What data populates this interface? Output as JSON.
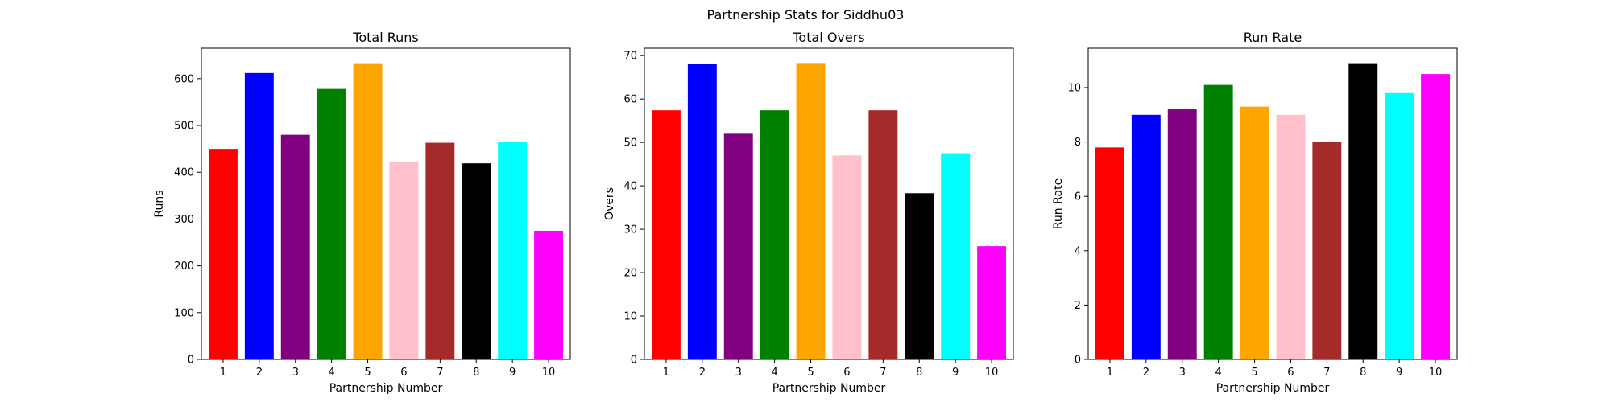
{
  "figure": {
    "suptitle": "Partnership Stats for Siddhu03"
  },
  "bar_colors": [
    "#ff0000",
    "#0000ff",
    "#800080",
    "#008000",
    "#ffa500",
    "#ffc0cb",
    "#a52a2a",
    "#000000",
    "#00ffff",
    "#ff00ff"
  ],
  "chart_data": [
    {
      "type": "bar",
      "title": "Total Runs",
      "xlabel": "Partnership Number",
      "ylabel": "Runs",
      "categories": [
        "1",
        "2",
        "3",
        "4",
        "5",
        "6",
        "7",
        "8",
        "9",
        "10"
      ],
      "values": [
        450,
        612,
        480,
        578,
        633,
        422,
        463,
        419,
        465,
        275
      ],
      "ylim": [
        0,
        665
      ],
      "yticks": [
        0,
        100,
        200,
        300,
        400,
        500,
        600
      ]
    },
    {
      "type": "bar",
      "title": "Total Overs",
      "xlabel": "Partnership Number",
      "ylabel": "Overs",
      "categories": [
        "1",
        "2",
        "3",
        "4",
        "5",
        "6",
        "7",
        "8",
        "9",
        "10"
      ],
      "values": [
        57.4,
        68.0,
        52.0,
        57.4,
        68.3,
        47.0,
        57.4,
        38.3,
        47.5,
        26.1
      ],
      "ylim": [
        0,
        71.7
      ],
      "yticks": [
        0,
        10,
        20,
        30,
        40,
        50,
        60,
        70
      ]
    },
    {
      "type": "bar",
      "title": "Run Rate",
      "xlabel": "Partnership Number",
      "ylabel": "Run Rate",
      "categories": [
        "1",
        "2",
        "3",
        "4",
        "5",
        "6",
        "7",
        "8",
        "9",
        "10"
      ],
      "values": [
        7.8,
        9.0,
        9.2,
        10.1,
        9.3,
        9.0,
        8.0,
        10.9,
        9.8,
        10.5
      ],
      "ylim": [
        0,
        11.45
      ],
      "yticks": [
        0,
        2,
        4,
        6,
        8,
        10
      ]
    }
  ]
}
